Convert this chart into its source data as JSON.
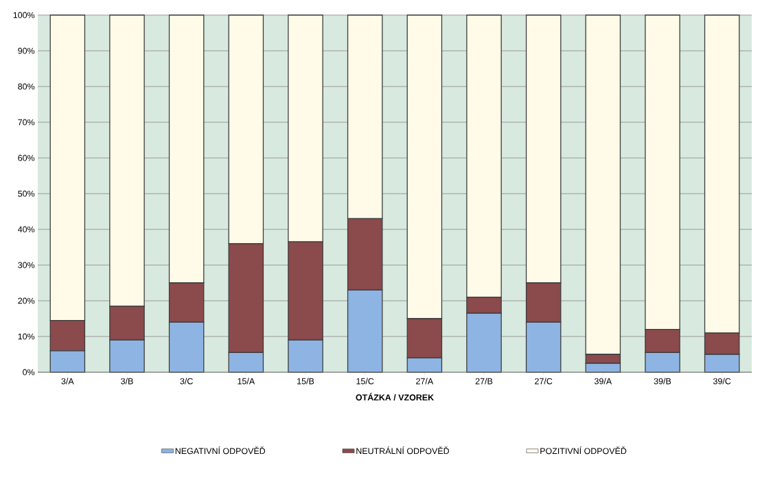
{
  "chart_data": {
    "type": "bar",
    "stacked": true,
    "xlabel": "OTÁZKA / VZOREK",
    "categories": [
      "3/A",
      "3/B",
      "3/C",
      "15/A",
      "15/B",
      "15/C",
      "27/A",
      "27/B",
      "27/C",
      "39/A",
      "39/B",
      "39/C"
    ],
    "series": [
      {
        "name": "NEGATIVNÍ ODPOVĚĎ",
        "color": "#8eb4e3",
        "values": [
          6,
          9,
          14,
          5.5,
          9,
          23,
          4,
          16.5,
          14,
          2.5,
          5.5,
          5
        ]
      },
      {
        "name": "NEUTRÁLNÍ ODPOVĚĎ",
        "color": "#8b4a4c",
        "values": [
          8.5,
          9.5,
          11,
          30.5,
          27.5,
          20,
          11,
          4.5,
          11,
          2.5,
          6.5,
          6
        ]
      },
      {
        "name": "POZITIVNÍ ODPOVĚĎ",
        "color": "#fffbe8",
        "values": [
          85.5,
          81.5,
          75,
          64,
          63.5,
          57,
          85,
          79,
          75,
          95,
          88,
          89
        ]
      }
    ],
    "ylim": [
      0,
      100
    ],
    "yticks": [
      {
        "value": 0,
        "label": "0%"
      },
      {
        "value": 10,
        "label": "10%"
      },
      {
        "value": 20,
        "label": "20%"
      },
      {
        "value": 30,
        "label": "30%"
      },
      {
        "value": 40,
        "label": "40%"
      },
      {
        "value": 50,
        "label": "50%"
      },
      {
        "value": 60,
        "label": "60%"
      },
      {
        "value": 70,
        "label": "70%"
      },
      {
        "value": 80,
        "label": "80%"
      },
      {
        "value": 90,
        "label": "90%"
      },
      {
        "value": 100,
        "label": "100%"
      }
    ],
    "grid": "y",
    "legend": "bottom"
  }
}
